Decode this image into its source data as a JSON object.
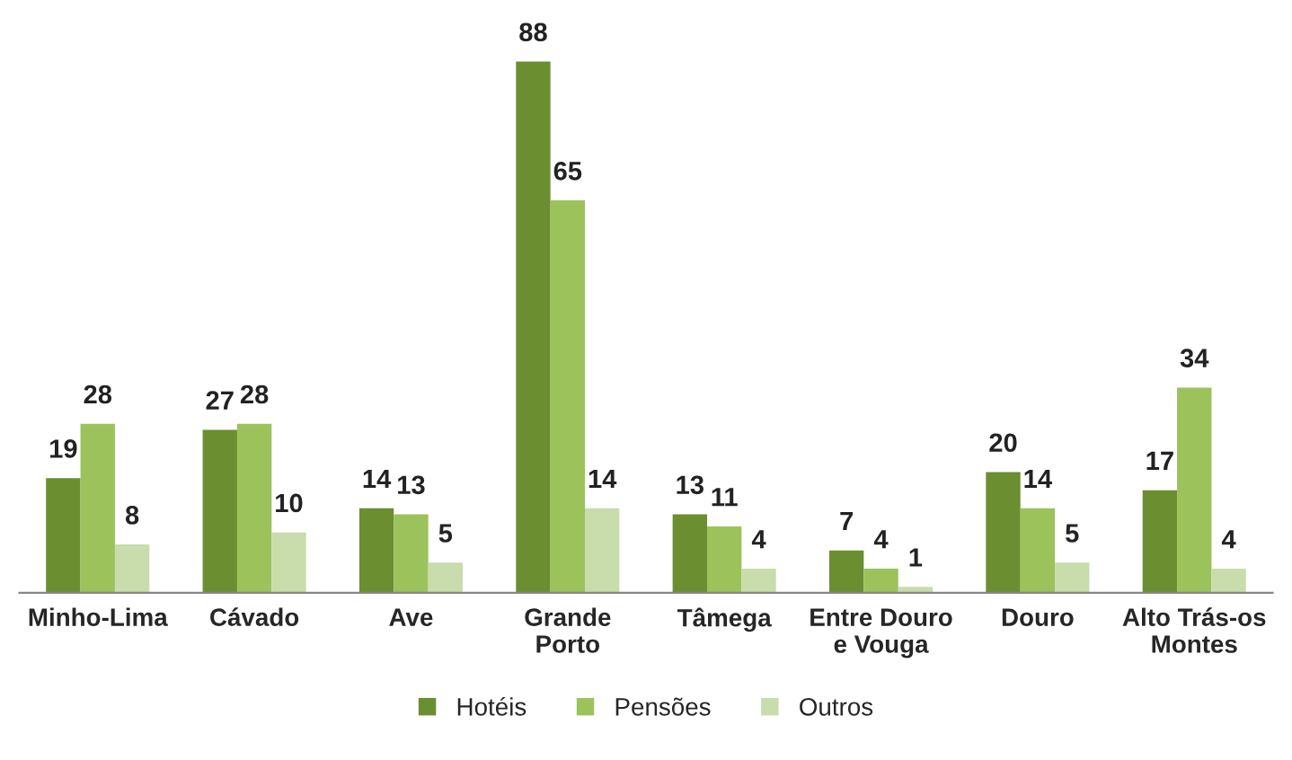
{
  "chart_data": {
    "type": "bar",
    "categories": [
      "Minho-Lima",
      "Cávado",
      "Ave",
      "Grande\nPorto",
      "Tâmega",
      "Entre Douro\ne Vouga",
      "Douro",
      "Alto Trás-os\nMontes"
    ],
    "series": [
      {
        "name": "Hotéis",
        "color": "#6b8e31",
        "values": [
          19,
          27,
          14,
          88,
          13,
          7,
          20,
          17
        ]
      },
      {
        "name": "Pensões",
        "color": "#9cc25c",
        "values": [
          28,
          28,
          13,
          65,
          11,
          4,
          14,
          34
        ]
      },
      {
        "name": "Outros",
        "color": "#c8dcac",
        "values": [
          8,
          10,
          5,
          14,
          4,
          1,
          5,
          4
        ]
      }
    ],
    "data_labels": true,
    "legend": "bottom",
    "grid": false
  }
}
